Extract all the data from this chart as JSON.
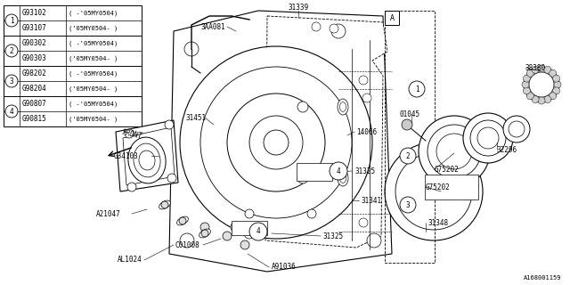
{
  "bg_color": "#ffffff",
  "line_color": "#000000",
  "fig_width": 6.4,
  "fig_height": 3.2,
  "dpi": 100,
  "watermark": "A168001159",
  "legend_rows": [
    {
      "num": "1",
      "part1": "G93102",
      "desc1": "( -'05MY0504)",
      "part2": "G93107",
      "desc2": "('05MY0504- )"
    },
    {
      "num": "2",
      "part1": "G90302",
      "desc1": "( -'05MY0504)",
      "part2": "G90303",
      "desc2": "('05MY0504- )"
    },
    {
      "num": "3",
      "part1": "G98202",
      "desc1": "( -'05MY0504)",
      "part2": "G98204",
      "desc2": "('05MY0504- )"
    },
    {
      "num": "4",
      "part1": "G90807",
      "desc1": "( -'05MY0504)",
      "part2": "G90815",
      "desc2": "('05MY0504- )"
    }
  ]
}
